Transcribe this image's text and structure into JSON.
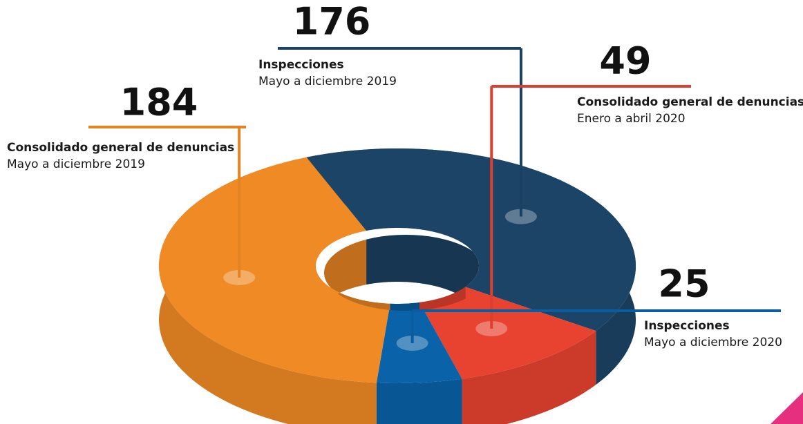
{
  "chart_data": {
    "type": "pie",
    "donut": true,
    "values": [
      184,
      176,
      49,
      25
    ],
    "categories": [
      [
        "Consolidado general de denuncias",
        "Mayo a diciembre 2019"
      ],
      [
        "Inspecciones",
        "Mayo a diciembre 2019"
      ],
      [
        "Consolidado general de denuncias",
        "Enero a abril 2020"
      ],
      [
        "Inspecciones",
        "Mayo a diciembre 2020"
      ]
    ],
    "colors": [
      "#f08a24",
      "#1b4466",
      "#e84230",
      "#0a62a8"
    ]
  }
}
